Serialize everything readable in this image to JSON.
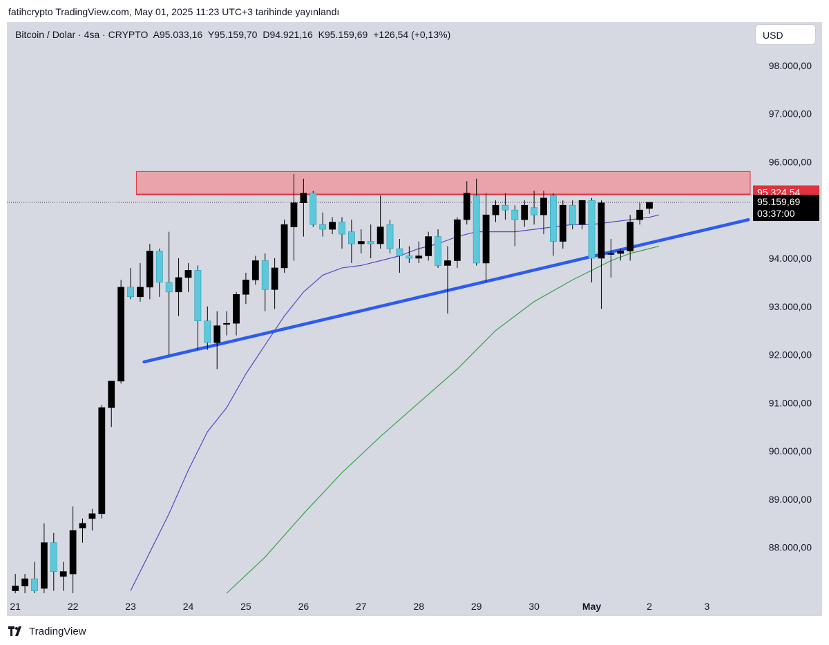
{
  "header": {
    "published_text": "fatihcrypto TradingView.com, May 01, 2025 11:23 UTC+3 tarihinde yayınlandı"
  },
  "legend": {
    "symbol": "Bitcoin / Dolar · 4sa · CRYPTO",
    "open": "A95.033,16",
    "high": "Y95.159,70",
    "low": "D94.921,16",
    "close": "K95.159,69",
    "change": "+126,54 (+0,13%)"
  },
  "currency_button": "USD",
  "brand": "TradingView",
  "price_tags": {
    "resistance_label": "95.324,54",
    "last_price_label": "95.159,69",
    "countdown_label": "03:37:00"
  },
  "colors": {
    "background": "#d6d9e1",
    "up_candle": "#5bc8dc",
    "down_candle": "#000000",
    "trendline": "#2e5bef",
    "resistance_zone": "#e8a3ab",
    "resistance_border": "#e0323f",
    "ma_fast": "#5a46c8",
    "ma_slow": "#3aa04a"
  },
  "chart_data": {
    "type": "candlestick",
    "y_axis_ticks": [
      "88.000,00",
      "89.000,00",
      "90.000,00",
      "91.000,00",
      "92.000,00",
      "93.000,00",
      "94.000,00",
      "95.000,00",
      "96.000,00",
      "97.000,00",
      "98.000,00"
    ],
    "y_tick_values": [
      88000,
      89000,
      90000,
      91000,
      92000,
      93000,
      94000,
      95000,
      96000,
      97000,
      98000
    ],
    "ylim": [
      87050,
      98900
    ],
    "x_axis_ticks": [
      "21",
      "22",
      "23",
      "24",
      "25",
      "26",
      "27",
      "28",
      "29",
      "30",
      "May",
      "2",
      "3"
    ],
    "x_tick_index": [
      0,
      6,
      12,
      18,
      24,
      30,
      36,
      42,
      48,
      54,
      60,
      66,
      72
    ],
    "x_range": [
      -0.3,
      76.5
    ],
    "candles": [
      [
        0,
        87100,
        87450,
        86950,
        87200
      ],
      [
        1,
        87200,
        87450,
        87050,
        87350
      ],
      [
        2,
        87350,
        87700,
        87000,
        87100
      ],
      [
        3,
        87150,
        88500,
        87000,
        88100
      ],
      [
        4,
        88100,
        88300,
        87100,
        87500
      ],
      [
        5,
        87400,
        87700,
        87100,
        87500
      ],
      [
        6,
        87450,
        88850,
        87050,
        88350
      ],
      [
        7,
        88400,
        88600,
        88100,
        88500
      ],
      [
        8,
        88600,
        88800,
        88350,
        88700
      ],
      [
        9,
        88700,
        90950,
        88600,
        90900
      ],
      [
        10,
        90900,
        91450,
        90500,
        91450
      ],
      [
        11,
        91450,
        93550,
        91400,
        93400
      ],
      [
        12,
        93400,
        93800,
        93150,
        93200
      ],
      [
        13,
        93200,
        93900,
        93100,
        93400
      ],
      [
        14,
        93400,
        94300,
        93150,
        94150
      ],
      [
        15,
        94150,
        94200,
        93200,
        93500
      ],
      [
        16,
        93500,
        94550,
        92000,
        93300
      ],
      [
        17,
        93300,
        94000,
        92800,
        93600
      ],
      [
        18,
        93600,
        93900,
        93300,
        93750
      ],
      [
        19,
        93750,
        93850,
        92100,
        92700
      ],
      [
        20,
        92700,
        93000,
        92100,
        92250
      ],
      [
        21,
        92250,
        92900,
        91700,
        92600
      ],
      [
        22,
        92650,
        92900,
        92400,
        92650
      ],
      [
        23,
        92650,
        93300,
        92400,
        93250
      ],
      [
        24,
        93250,
        93700,
        93050,
        93550
      ],
      [
        25,
        93550,
        94050,
        93450,
        93950
      ],
      [
        26,
        93950,
        94100,
        92900,
        93350
      ],
      [
        27,
        93350,
        94000,
        92950,
        93800
      ],
      [
        28,
        93800,
        94800,
        93700,
        94700
      ],
      [
        29,
        94650,
        95750,
        93950,
        95150
      ],
      [
        30,
        95150,
        95650,
        94450,
        95350
      ],
      [
        31,
        95350,
        95400,
        94650,
        94700
      ],
      [
        32,
        94700,
        94950,
        94450,
        94600
      ],
      [
        33,
        94600,
        94850,
        94500,
        94750
      ],
      [
        34,
        94750,
        94850,
        94200,
        94500
      ],
      [
        35,
        94550,
        94800,
        93900,
        94300
      ],
      [
        36,
        94300,
        94600,
        94100,
        94350
      ],
      [
        37,
        94350,
        94700,
        94000,
        94300
      ],
      [
        38,
        94300,
        95300,
        94200,
        94650
      ],
      [
        39,
        94700,
        94800,
        94100,
        94200
      ],
      [
        40,
        94200,
        94400,
        93700,
        94050
      ],
      [
        41,
        94050,
        94250,
        93900,
        94000
      ],
      [
        42,
        94000,
        94350,
        93900,
        94050
      ],
      [
        43,
        94050,
        94550,
        93950,
        94450
      ],
      [
        44,
        94450,
        94600,
        93800,
        93850
      ],
      [
        45,
        93850,
        94250,
        92850,
        93950
      ],
      [
        46,
        93950,
        94850,
        93800,
        94800
      ],
      [
        47,
        94800,
        95600,
        94700,
        95350
      ],
      [
        48,
        95300,
        95650,
        93850,
        93900
      ],
      [
        49,
        93900,
        95350,
        93500,
        94900
      ],
      [
        50,
        94900,
        95200,
        94750,
        95100
      ],
      [
        51,
        95100,
        95350,
        94800,
        95000
      ],
      [
        52,
        95000,
        95100,
        94250,
        94800
      ],
      [
        53,
        94800,
        95200,
        94650,
        95100
      ],
      [
        54,
        95050,
        95400,
        94700,
        94900
      ],
      [
        55,
        94900,
        95400,
        94500,
        95250
      ],
      [
        56,
        95300,
        95350,
        94050,
        94350
      ],
      [
        57,
        94350,
        95200,
        94200,
        95100
      ],
      [
        58,
        95100,
        95200,
        94600,
        94700
      ],
      [
        59,
        94700,
        95200,
        94600,
        95200
      ],
      [
        60,
        95200,
        95250,
        93500,
        94000
      ],
      [
        61,
        94000,
        95200,
        92950,
        95150
      ],
      [
        62,
        94100,
        94400,
        93600,
        94100
      ],
      [
        63,
        94100,
        94200,
        93950,
        94150
      ],
      [
        64,
        94150,
        94900,
        93950,
        94750
      ],
      [
        65,
        94800,
        95150,
        94700,
        95000
      ],
      [
        66,
        95033,
        95160,
        94921,
        95160
      ]
    ],
    "ma_fast": [
      [
        12,
        87100
      ],
      [
        14,
        87900
      ],
      [
        16,
        88700
      ],
      [
        18,
        89600
      ],
      [
        20,
        90400
      ],
      [
        22,
        90900
      ],
      [
        24,
        91600
      ],
      [
        26,
        92200
      ],
      [
        28,
        92800
      ],
      [
        30,
        93300
      ],
      [
        32,
        93650
      ],
      [
        34,
        93800
      ],
      [
        36,
        93850
      ],
      [
        38,
        93950
      ],
      [
        40,
        94050
      ],
      [
        42,
        94200
      ],
      [
        44,
        94300
      ],
      [
        46,
        94450
      ],
      [
        48,
        94550
      ],
      [
        50,
        94550
      ],
      [
        52,
        94550
      ],
      [
        54,
        94600
      ],
      [
        56,
        94650
      ],
      [
        58,
        94700
      ],
      [
        60,
        94700
      ],
      [
        62,
        94750
      ],
      [
        64,
        94800
      ],
      [
        66,
        94850
      ],
      [
        67,
        94900
      ]
    ],
    "ma_slow": [
      [
        22,
        87050
      ],
      [
        26,
        87800
      ],
      [
        30,
        88700
      ],
      [
        34,
        89550
      ],
      [
        38,
        90300
      ],
      [
        42,
        91000
      ],
      [
        46,
        91700
      ],
      [
        50,
        92500
      ],
      [
        54,
        93100
      ],
      [
        58,
        93550
      ],
      [
        62,
        93950
      ],
      [
        64,
        94100
      ],
      [
        66,
        94200
      ],
      [
        67,
        94250
      ]
    ],
    "trendline": {
      "start": [
        13.4,
        91850
      ],
      "end": [
        76.3,
        94800
      ]
    },
    "resistance_zone": {
      "x_start": 12.6,
      "x_end": 76.5,
      "y_low": 95324.54,
      "y_high": 95800
    },
    "last_price": 95159.69
  }
}
